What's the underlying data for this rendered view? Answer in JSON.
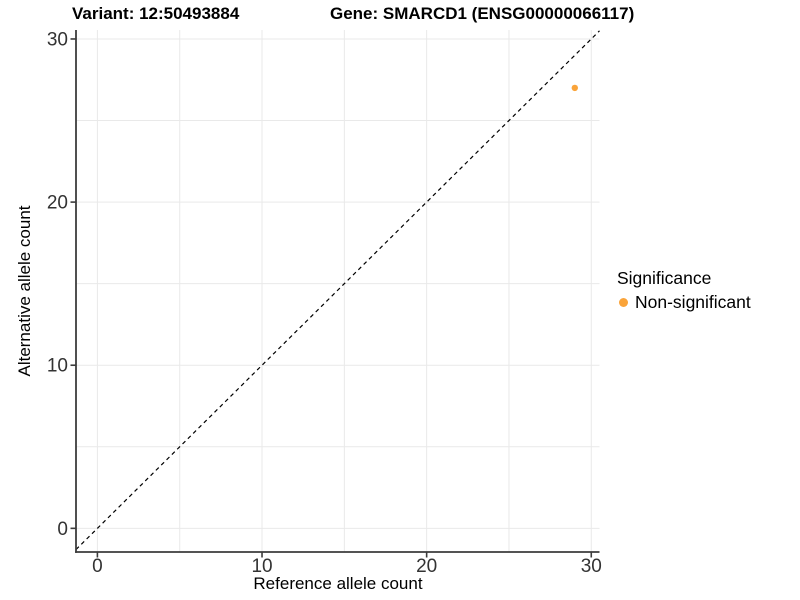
{
  "chart_data": {
    "type": "scatter",
    "title_left": "Variant: 12:50493884",
    "title_right": "Gene: SMARCD1 (ENSG00000066117)",
    "xlabel": "Reference allele count",
    "ylabel": "Alternative allele count",
    "x_ticks": [
      0,
      10,
      20,
      30
    ],
    "y_ticks": [
      0,
      10,
      20,
      30
    ],
    "grid_step": 5,
    "xlim": [
      -1.3,
      30.5
    ],
    "ylim": [
      -1.45,
      30.55
    ],
    "grid": true,
    "identity_line": {
      "style": "dashed",
      "equation": "y = x"
    },
    "series": [
      {
        "name": "Non-significant",
        "color": "#FAA43A",
        "points": [
          {
            "x": 29,
            "y": 27
          }
        ]
      }
    ],
    "legend": {
      "title": "Significance",
      "position": "right",
      "items": [
        {
          "label": "Non-significant",
          "color": "#FAA43A"
        }
      ]
    }
  },
  "colors": {
    "grid": "#E9E9E9",
    "axis": "#3C3C3C",
    "tick_text": "#333333",
    "dashed_line": "#000000",
    "background": "#FFFFFF"
  }
}
